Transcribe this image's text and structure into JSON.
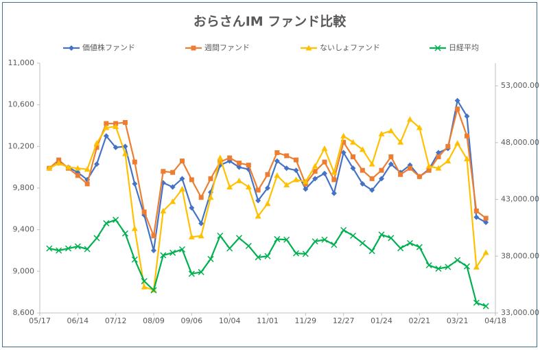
{
  "chart_data": {
    "type": "line",
    "title": "おらさんIM ファンド比較",
    "categories": [
      "05/17",
      null,
      null,
      null,
      "06/14",
      null,
      null,
      null,
      "07/12",
      null,
      null,
      null,
      "08/09",
      null,
      null,
      null,
      "09/06",
      null,
      null,
      null,
      "10/04",
      null,
      null,
      null,
      "11/01",
      null,
      null,
      null,
      "11/29",
      null,
      null,
      null,
      "12/27",
      null,
      null,
      null,
      "01/24",
      null,
      null,
      null,
      "02/21",
      null,
      null,
      null,
      "03/21",
      null,
      null,
      null,
      "04/18"
    ],
    "ylim": [
      8600,
      11000
    ],
    "yticks": [
      {
        "value": 8600,
        "label": "8,600"
      },
      {
        "value": 9000,
        "label": "9,000"
      },
      {
        "value": 9400,
        "label": "9,400"
      },
      {
        "value": 9800,
        "label": "9,800"
      },
      {
        "value": 10200,
        "label": "10,200"
      },
      {
        "value": 10600,
        "label": "10,600"
      },
      {
        "value": 11000,
        "label": "11,000"
      }
    ],
    "y2lim": [
      33000,
      55000
    ],
    "y2ticks": [
      {
        "value": 33000,
        "label": "33,000.00"
      },
      {
        "value": 38000,
        "label": "38,000.00"
      },
      {
        "value": 43000,
        "label": "43,000.00"
      },
      {
        "value": 48000,
        "label": "48,000.00"
      },
      {
        "value": 53000,
        "label": "53,000.00"
      }
    ],
    "legend": "top",
    "series": [
      {
        "name": "価値株ファンド",
        "color": "#4472c4",
        "marker": "diamond",
        "values": [
          null,
          9990,
          10040,
          10000,
          9950,
          9880,
          10030,
          10300,
          10190,
          10200,
          9840,
          9540,
          9200,
          9850,
          9810,
          9890,
          9610,
          9460,
          9760,
          10020,
          10060,
          10000,
          9980,
          9680,
          9800,
          10060,
          9990,
          9970,
          9790,
          9890,
          9940,
          9750,
          10140,
          9990,
          9840,
          9780,
          9890,
          10030,
          9950,
          10020,
          9910,
          9980,
          10140,
          10180,
          10640,
          10490,
          9520,
          9470,
          null
        ]
      },
      {
        "name": "週間ファンド",
        "color": "#ed7d31",
        "marker": "square",
        "values": [
          null,
          9990,
          10070,
          9990,
          9920,
          9840,
          10190,
          10420,
          10420,
          10430,
          10050,
          9570,
          9340,
          9960,
          9950,
          10060,
          9880,
          9710,
          9890,
          10050,
          10090,
          10040,
          10020,
          9780,
          9930,
          10140,
          10110,
          10070,
          9840,
          9960,
          10050,
          9880,
          10240,
          10100,
          9970,
          9890,
          9970,
          10100,
          9930,
          9990,
          9910,
          9970,
          10100,
          10200,
          10560,
          10300,
          9580,
          9510,
          null
        ]
      },
      {
        "name": "ないしょファンド",
        "color": "#ffc000",
        "marker": "triangle",
        "values": [
          null,
          9990,
          10040,
          10000,
          9990,
          9980,
          10230,
          10380,
          10390,
          10130,
          9410,
          8850,
          8820,
          9580,
          9670,
          9790,
          9330,
          9340,
          9710,
          10090,
          9810,
          9870,
          9810,
          9530,
          9650,
          9920,
          9830,
          9880,
          9860,
          10010,
          10180,
          9950,
          10300,
          10240,
          10170,
          10030,
          10320,
          10350,
          10240,
          10460,
          10380,
          10010,
          9990,
          10060,
          10230,
          10080,
          9040,
          9180,
          null
        ]
      },
      {
        "name": "日経平均",
        "color": "#00b050",
        "marker": "x",
        "axis": "y2",
        "values": [
          null,
          38680,
          38500,
          38680,
          38860,
          38620,
          39590,
          40900,
          41200,
          40000,
          37700,
          35800,
          35000,
          38080,
          38300,
          38600,
          36450,
          36600,
          37750,
          39800,
          38680,
          39600,
          38900,
          37900,
          38000,
          39500,
          39450,
          38250,
          38200,
          39300,
          39450,
          39000,
          40300,
          39800,
          39150,
          38450,
          39900,
          39600,
          38700,
          39150,
          38800,
          37200,
          36900,
          37050,
          37650,
          37100,
          33900,
          33600,
          null
        ]
      }
    ]
  }
}
